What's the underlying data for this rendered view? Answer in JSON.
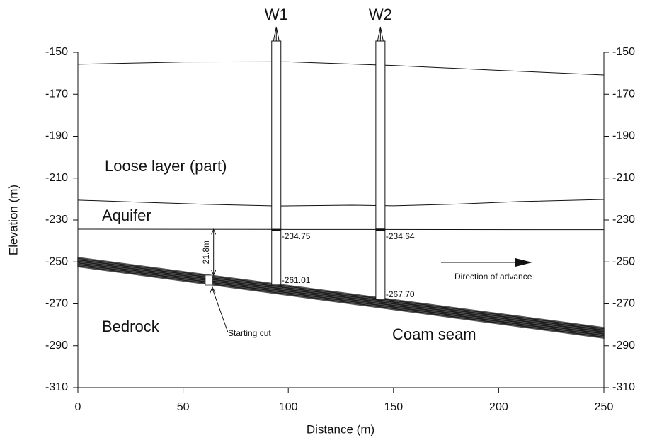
{
  "chart_data": {
    "type": "section",
    "xlabel": "Distance (m)",
    "ylabel": "Elevation (m)",
    "xlim": [
      0,
      250
    ],
    "ylim": [
      -310,
      -150
    ],
    "xticks": [
      0,
      50,
      100,
      150,
      200,
      250
    ],
    "yticks": [
      -150,
      -170,
      -190,
      -210,
      -230,
      -250,
      -270,
      -290,
      -310
    ],
    "boundaries": [
      {
        "x": [
          0,
          50,
          100,
          150,
          200,
          250
        ],
        "y": [
          -155.7,
          -154.6,
          -154.5,
          -156.3,
          -158.6,
          -160.8
        ]
      },
      {
        "x": [
          0,
          30,
          60,
          95,
          130,
          150,
          180,
          210,
          250
        ],
        "y": [
          -220.5,
          -221.5,
          -222.5,
          -223.3,
          -222.9,
          -223.2,
          -222.4,
          -221.2,
          -220.2
        ]
      },
      {
        "x": [
          0,
          100,
          250
        ],
        "y": [
          -234.4,
          -234.5,
          -234.6
        ]
      }
    ],
    "seam": {
      "x": [
        0,
        250
      ],
      "top": [
        -247.9,
        -281.3
      ],
      "bottom": [
        -252.3,
        -286.4
      ]
    },
    "wells": [
      {
        "name": "W1",
        "x": 94.3,
        "top": -144.6,
        "aquifer_level": {
          "value": -234.75,
          "label": "-234.75"
        },
        "bottom": {
          "value": -261.01,
          "label": "-261.01"
        }
      },
      {
        "name": "W2",
        "x": 143.8,
        "top": -144.6,
        "aquifer_level": {
          "value": -234.64,
          "label": "-234.64"
        },
        "bottom": {
          "value": -267.7,
          "label": "-267.70"
        }
      }
    ],
    "layers": [
      "Loose layer (part)",
      "Aquifer",
      "Bedrock",
      "Coam seam"
    ],
    "distance_to_seam": {
      "value": 21.8,
      "label": "21.8m"
    },
    "start_label": "Starting cut",
    "advance_label": "Direction of advance"
  }
}
